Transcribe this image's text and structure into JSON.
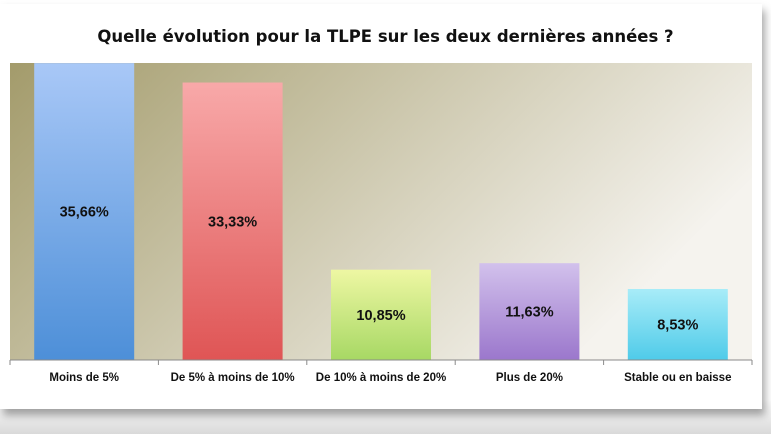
{
  "chart_data": {
    "type": "bar",
    "title": "Quelle évolution pour la TLPE sur les deux dernières années ?",
    "categories": [
      "Moins de 5%",
      "De 5% à moins de 10%",
      "De 10% à moins de 20%",
      "Plus de 20%",
      "Stable ou en baisse"
    ],
    "values": [
      35.66,
      33.33,
      10.85,
      11.63,
      8.53
    ],
    "value_labels": [
      "35,66%",
      "33,33%",
      "10,85%",
      "11,63%",
      "8,53%"
    ],
    "ylim": [
      0,
      40
    ],
    "xlabel": "",
    "ylabel": "",
    "grid": false,
    "legend": "none",
    "colors": [
      {
        "top": "#a9c8f7",
        "bottom": "#4d8fd8"
      },
      {
        "top": "#f8a9a9",
        "bottom": "#df5555"
      },
      {
        "top": "#eef7a3",
        "bottom": "#a7d864"
      },
      {
        "top": "#d2c1ec",
        "bottom": "#9b77cc"
      },
      {
        "top": "#a8ecf8",
        "bottom": "#4fcbe9"
      }
    ],
    "plot_background": {
      "left": "#a39b6b",
      "right": "#f5f3ee"
    }
  }
}
